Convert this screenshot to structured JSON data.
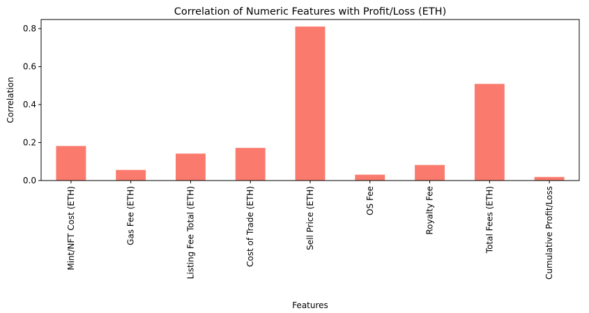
{
  "chart_data": {
    "type": "bar",
    "title": "Correlation of Numeric Features with Profit/Loss (ETH)",
    "xlabel": "Features",
    "ylabel": "Correlation",
    "categories": [
      "Mint/NFT Cost (ETH)",
      "Gas Fee (ETH)",
      "Listing Fee Total (ETH)",
      "Cost of Trade (ETH)",
      "Sell Price (ETH)",
      "OS Fee",
      "Royalty Fee",
      "Total Fees (ETH)",
      "Cumulative Profit/Loss"
    ],
    "values": [
      0.182,
      0.056,
      0.142,
      0.172,
      0.811,
      0.031,
      0.082,
      0.509,
      0.019
    ],
    "ylim": [
      0,
      0.848
    ],
    "yticks": [
      "0.0",
      "0.2",
      "0.4",
      "0.6",
      "0.8"
    ],
    "bar_color": "#fa7b6d",
    "grid": false,
    "legend": "none"
  }
}
